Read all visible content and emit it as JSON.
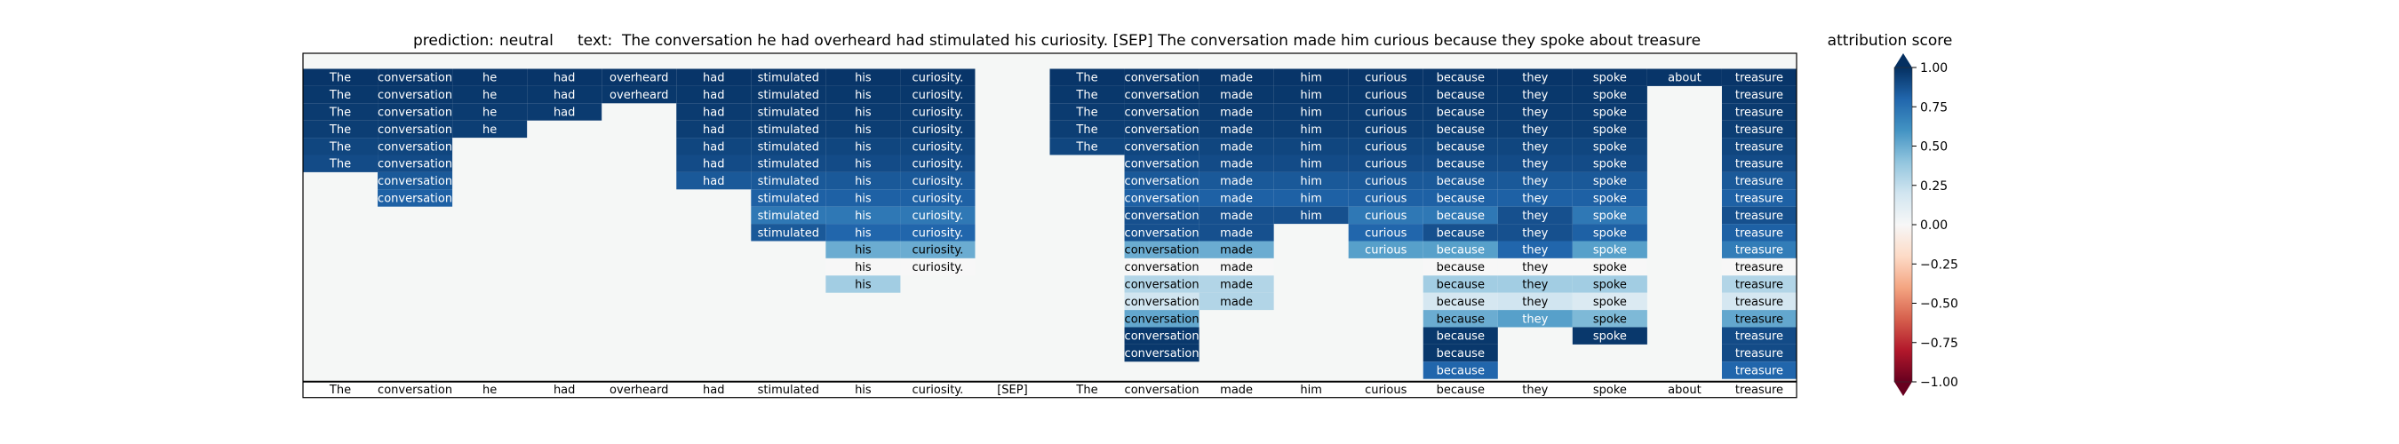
{
  "header": {
    "prediction_label": "prediction:",
    "prediction_value": "neutral",
    "text_label": "text:",
    "text_value": "The conversation he had overheard had stimulated his curiosity. [SEP] The conversation made him curious because they spoke about treasure"
  },
  "colorbar": {
    "title": "attribution score",
    "ticks": [
      "1.00",
      "0.75",
      "0.50",
      "0.25",
      "0.00",
      "−0.25",
      "−0.50",
      "−0.75",
      "−1.00"
    ],
    "colormap": "RdBu",
    "range": [
      -1,
      1
    ]
  },
  "colors": {
    "empty_cell": "#f5f7f6",
    "frame": "#000000"
  },
  "chart_data": {
    "type": "heatmap",
    "tokens": [
      "The",
      "conversation",
      "he",
      "had",
      "overheard",
      "had",
      "stimulated",
      "his",
      "curiosity.",
      "[SEP]",
      "The",
      "conversation",
      "made",
      "him",
      "curious",
      "because",
      "they",
      "spoke",
      "about",
      "treasure"
    ],
    "rows": [
      [
        0.98,
        0.98,
        0.98,
        0.98,
        0.98,
        0.98,
        0.98,
        0.98,
        0.98,
        null,
        0.98,
        0.98,
        0.98,
        0.98,
        0.98,
        0.98,
        0.98,
        0.98,
        0.98,
        0.98
      ],
      [
        0.97,
        0.97,
        0.97,
        0.97,
        0.97,
        0.97,
        0.97,
        0.97,
        0.97,
        null,
        0.97,
        0.97,
        0.97,
        0.97,
        0.97,
        0.97,
        0.97,
        0.97,
        null,
        0.97
      ],
      [
        0.96,
        0.96,
        0.96,
        0.96,
        null,
        0.96,
        0.96,
        0.96,
        0.96,
        null,
        0.96,
        0.96,
        0.96,
        0.96,
        0.96,
        0.96,
        0.96,
        0.96,
        null,
        0.96
      ],
      [
        0.95,
        0.95,
        0.95,
        null,
        null,
        0.95,
        0.95,
        0.95,
        0.95,
        null,
        0.95,
        0.95,
        0.95,
        0.95,
        0.95,
        0.95,
        0.95,
        0.95,
        null,
        0.95
      ],
      [
        0.92,
        0.92,
        null,
        null,
        null,
        0.92,
        0.92,
        0.92,
        0.92,
        null,
        0.92,
        0.92,
        0.92,
        0.92,
        0.92,
        0.92,
        0.92,
        0.92,
        null,
        0.92
      ],
      [
        0.9,
        0.9,
        null,
        null,
        null,
        0.9,
        0.9,
        0.9,
        0.9,
        null,
        null,
        0.9,
        0.9,
        0.9,
        0.9,
        0.9,
        0.9,
        0.9,
        null,
        0.9
      ],
      [
        null,
        0.85,
        null,
        null,
        null,
        0.85,
        0.85,
        0.85,
        0.85,
        null,
        null,
        0.85,
        0.85,
        0.85,
        0.85,
        0.85,
        0.85,
        0.85,
        null,
        0.85
      ],
      [
        null,
        0.82,
        null,
        null,
        null,
        null,
        0.82,
        0.82,
        0.82,
        null,
        null,
        0.82,
        0.82,
        0.82,
        0.82,
        0.82,
        0.82,
        0.82,
        null,
        0.82
      ],
      [
        null,
        null,
        null,
        null,
        null,
        null,
        0.72,
        0.72,
        0.72,
        null,
        null,
        0.88,
        0.88,
        0.88,
        0.72,
        0.72,
        0.88,
        0.72,
        null,
        0.88
      ],
      [
        null,
        null,
        null,
        null,
        null,
        null,
        0.85,
        0.8,
        0.8,
        null,
        null,
        0.88,
        0.88,
        null,
        0.8,
        0.88,
        0.88,
        0.82,
        null,
        0.82
      ],
      [
        null,
        null,
        null,
        null,
        null,
        null,
        null,
        0.5,
        0.5,
        null,
        null,
        0.5,
        0.5,
        null,
        0.55,
        0.55,
        0.8,
        0.55,
        null,
        0.7
      ],
      [
        null,
        null,
        null,
        null,
        null,
        null,
        null,
        0.0,
        0.0,
        null,
        null,
        0.0,
        0.0,
        null,
        null,
        0.0,
        0.0,
        0.0,
        null,
        0.0
      ],
      [
        null,
        null,
        null,
        null,
        null,
        null,
        null,
        0.35,
        null,
        null,
        null,
        0.3,
        0.3,
        null,
        null,
        0.35,
        0.35,
        0.35,
        null,
        0.3
      ],
      [
        null,
        null,
        null,
        null,
        null,
        null,
        null,
        null,
        null,
        null,
        null,
        0.2,
        0.3,
        null,
        null,
        0.18,
        0.2,
        0.15,
        null,
        0.18
      ],
      [
        null,
        null,
        null,
        null,
        null,
        null,
        null,
        null,
        null,
        null,
        null,
        0.52,
        null,
        null,
        null,
        0.5,
        0.55,
        0.45,
        null,
        0.52
      ],
      [
        null,
        null,
        null,
        null,
        null,
        null,
        null,
        null,
        null,
        null,
        null,
        0.97,
        null,
        null,
        null,
        0.97,
        null,
        0.97,
        null,
        0.9
      ],
      [
        null,
        null,
        null,
        null,
        null,
        null,
        null,
        null,
        null,
        null,
        null,
        0.97,
        null,
        null,
        null,
        0.97,
        null,
        null,
        null,
        0.9
      ],
      [
        null,
        null,
        null,
        null,
        null,
        null,
        null,
        null,
        null,
        null,
        null,
        null,
        null,
        null,
        null,
        0.8,
        null,
        null,
        null,
        0.8
      ]
    ]
  }
}
